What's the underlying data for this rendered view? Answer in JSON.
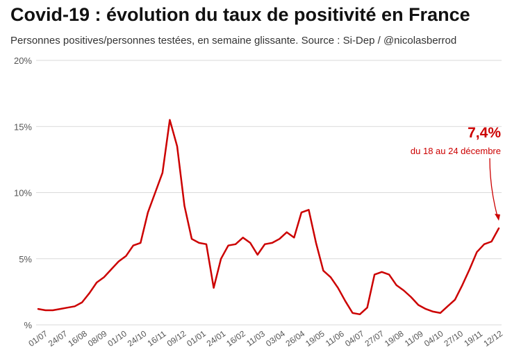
{
  "title": "Covid-19 : évolution du taux de positivité en France",
  "subtitle": "Personnes positives/personnes testées, en semaine glissante. Source : Si-Dep / @nicolasberrod",
  "annotation": {
    "value": "7,4%",
    "label": "du 18 au 24 décembre"
  },
  "colors": {
    "series": "#cc0000",
    "grid": "#d9d9d9",
    "text": "#555555"
  },
  "chart_data": {
    "type": "line",
    "title": "Covid-19 : évolution du taux de positivité en France",
    "subtitle": "Personnes positives/personnes testées, en semaine glissante. Source : Si-Dep / @nicolasberrod",
    "ylim": [
      0,
      20
    ],
    "yticks": [
      0,
      5,
      10,
      15,
      20
    ],
    "ytick_labels": [
      "%",
      "5%",
      "10%",
      "15%",
      "20%"
    ],
    "grid": true,
    "xtick_labels": [
      "01/07",
      "24/07",
      "16/08",
      "08/09",
      "01/10",
      "24/10",
      "16/11",
      "09/12",
      "01/01",
      "24/01",
      "16/02",
      "11/03",
      "03/04",
      "26/04",
      "19/05",
      "11/06",
      "04/07",
      "27/07",
      "19/08",
      "11/09",
      "04/10",
      "27/10",
      "19/11",
      "12/12"
    ],
    "series": [
      {
        "values": [
          1.2,
          1.1,
          1.1,
          1.2,
          1.3,
          1.4,
          1.7,
          2.4,
          3.2,
          3.6,
          4.2,
          4.8,
          5.2,
          6.0,
          6.2,
          8.5,
          10.0,
          11.5,
          15.5,
          13.5,
          9.0,
          6.5,
          6.2,
          6.1,
          2.8,
          5.0,
          6.0,
          6.1,
          6.6,
          6.2,
          5.3,
          6.1,
          6.2,
          6.5,
          7.0,
          6.6,
          8.5,
          8.7,
          6.2,
          4.1,
          3.6,
          2.8,
          1.8,
          0.9,
          0.8,
          1.3,
          3.8,
          4.0,
          3.8,
          3.0,
          2.6,
          2.1,
          1.5,
          1.2,
          1.0,
          0.9,
          1.4,
          1.9,
          3.0,
          4.2,
          5.5,
          6.1,
          6.3,
          7.3
        ]
      }
    ]
  }
}
